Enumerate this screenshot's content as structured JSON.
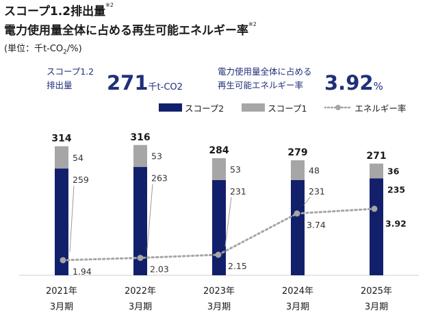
{
  "header": {
    "title1": "スコープ1.2排出量",
    "title1_note": "※2",
    "title2": "電力使用量全体に占める再生可能エネルギー率",
    "title2_note": "※2",
    "unit_prefix": "(単位：千t-CO",
    "unit_sub": "2",
    "unit_suffix": "/%)"
  },
  "kpi": {
    "emission_label_line1": "スコープ1.2",
    "emission_label_line2": "排出量",
    "emission_value": "271",
    "emission_unit": "千t-CO2",
    "renewable_label_line1": "電力使用量全体に占める",
    "renewable_label_line2": "再生可能エネルギー率",
    "renewable_value": "3.92",
    "renewable_unit": "%"
  },
  "colors": {
    "scope2": "#12206b",
    "scope1": "#a6a6a6",
    "renewable_line": "#a6a6a6",
    "kpi_text": "#1f2f7a"
  },
  "chart_data": {
    "type": "bar",
    "stacked": true,
    "categories": [
      [
        "2021年",
        "3月期"
      ],
      [
        "2022年",
        "3月期"
      ],
      [
        "2023年",
        "3月期"
      ],
      [
        "2024年",
        "3月期"
      ],
      [
        "2025年",
        "3月期"
      ]
    ],
    "series": [
      {
        "name": "スコープ2",
        "values": [
          259,
          263,
          231,
          231,
          235
        ],
        "color": "#12206b"
      },
      {
        "name": "スコープ1",
        "values": [
          54,
          53,
          53,
          48,
          36
        ],
        "color": "#a6a6a6"
      }
    ],
    "totals": [
      314,
      316,
      284,
      279,
      271
    ],
    "line_series": {
      "name": "エネルギー率",
      "values": [
        1.94,
        2.03,
        2.15,
        3.74,
        3.92
      ],
      "style": "dotted",
      "color": "#a6a6a6"
    },
    "highlight_last": true,
    "legend_position": "top"
  }
}
